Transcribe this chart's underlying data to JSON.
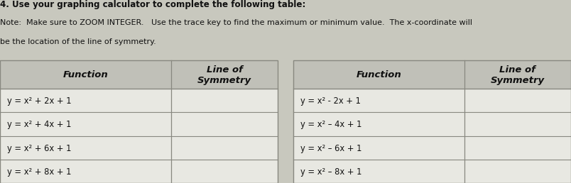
{
  "title_line1": "4. Use your graphing calculator to complete the following table:",
  "title_line2": "Note:  Make sure to ZOOM INTEGER.   Use the trace key to find the maximum or minimum value.  The x-coordinate will",
  "title_line3": "be the location of the line of symmetry.",
  "left_table": {
    "headers": [
      "Function",
      "Line of\nSymmetry"
    ],
    "rows": [
      "y = x² + 2x + 1",
      "y = x² + 4x + 1",
      "y = x² + 6x + 1",
      "y = x² + 8x + 1"
    ]
  },
  "right_table": {
    "headers": [
      "Function",
      "Line of\nSymmetry"
    ],
    "rows": [
      "y = x² - 2x + 1",
      "y = x² – 4x + 1",
      "y = x² – 6x + 1",
      "y = x² – 8x + 1"
    ]
  },
  "bg_color": "#c8c8be",
  "cell_color": "#e8e8e2",
  "header_color": "#c0c0b8",
  "text_color": "#111111",
  "border_color": "#888880",
  "title_bold_color": "#111111"
}
